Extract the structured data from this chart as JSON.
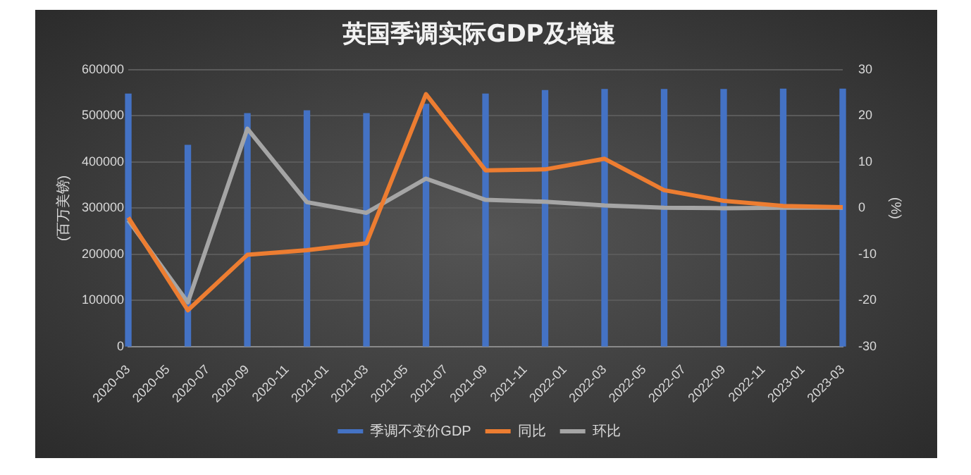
{
  "chart_data": {
    "type": "bar",
    "title": "英国季调实际GDP及增速",
    "ylabel": "(百万美镑)",
    "y2label": "(%)",
    "x": [
      "2020-03",
      "2020-06",
      "2020-09",
      "2020-12",
      "2021-03",
      "2021-06",
      "2021-09",
      "2021-12",
      "2022-03",
      "2022-06",
      "2022-09",
      "2022-12",
      "2023-03"
    ],
    "xlim": [
      "2020-03",
      "2023-03"
    ],
    "xticks": [
      "2020-03",
      "2020-05",
      "2020-07",
      "2020-09",
      "2020-11",
      "2021-01",
      "2021-03",
      "2021-05",
      "2021-07",
      "2021-09",
      "2021-11",
      "2022-01",
      "2022-03",
      "2022-05",
      "2022-07",
      "2022-09",
      "2022-11",
      "2023-01",
      "2023-03"
    ],
    "series": [
      {
        "name": "季调不变价GDP",
        "color": "#4472c4",
        "values": [
          547000,
          436000,
          505000,
          511000,
          505000,
          525000,
          547000,
          555000,
          557000,
          557000,
          557000,
          558000,
          558000
        ]
      },
      {
        "name": "同比",
        "type": "line",
        "axis": "y2",
        "color": "#ed7d31",
        "values": [
          -2.0,
          -22.1,
          -10.1,
          -9.1,
          -7.6,
          24.7,
          8.2,
          8.4,
          10.7,
          3.9,
          1.6,
          0.5,
          0.2
        ]
      },
      {
        "name": "环比",
        "type": "line",
        "axis": "y2",
        "color": "#a5a5a5",
        "values": [
          -2.6,
          -20.4,
          17.2,
          1.3,
          -1.0,
          6.4,
          1.8,
          1.4,
          0.6,
          0.1,
          0.0,
          0.1,
          0.1
        ]
      }
    ],
    "ylim": [
      0,
      600000
    ],
    "yticks": [
      0,
      100000,
      200000,
      300000,
      400000,
      500000,
      600000
    ],
    "y2lim": [
      -30,
      30
    ],
    "y2ticks": [
      -30,
      -20,
      -10,
      0,
      10,
      20,
      30
    ],
    "grid": "y",
    "legend": "bottom",
    "marker": "none"
  }
}
